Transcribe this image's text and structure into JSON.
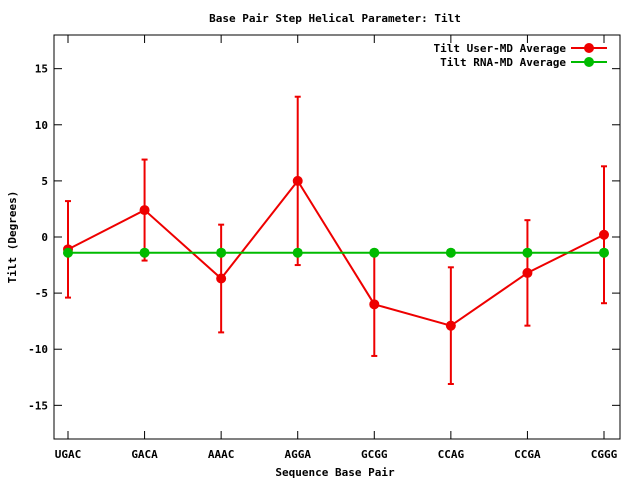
{
  "colors": {
    "background": "#ffffff",
    "axis": "#000000",
    "user_series": "#ee0000",
    "rna_series": "#00bb00"
  },
  "chart_data": {
    "type": "line",
    "title": "Base Pair Step Helical Parameter: Tilt",
    "xlabel": "Sequence Base Pair",
    "ylabel": "Tilt (Degrees)",
    "categories": [
      "UGAC",
      "GACA",
      "AAAC",
      "AGGA",
      "GCGG",
      "CCAG",
      "CCGA",
      "CGGG"
    ],
    "ylim": [
      -18,
      18
    ],
    "yticks": [
      -15,
      -10,
      -5,
      0,
      5,
      10,
      15
    ],
    "ytick_labels": [
      "-15",
      "-10",
      "-5",
      "0",
      "5",
      "10",
      "15"
    ],
    "grid": false,
    "legend_position": "top-right",
    "series": [
      {
        "name": "Tilt User-MD Average",
        "color": "#ee0000",
        "values": [
          -1.1,
          2.4,
          -3.7,
          5.0,
          -6.0,
          -7.9,
          -3.2,
          0.2
        ],
        "errors": [
          4.3,
          4.5,
          4.8,
          7.5,
          4.6,
          5.2,
          4.7,
          6.1
        ]
      },
      {
        "name": "Tilt RNA-MD Average",
        "color": "#00bb00",
        "values": [
          -1.4,
          -1.4,
          -1.4,
          -1.4,
          -1.4,
          -1.4,
          -1.4,
          -1.4
        ]
      }
    ]
  }
}
